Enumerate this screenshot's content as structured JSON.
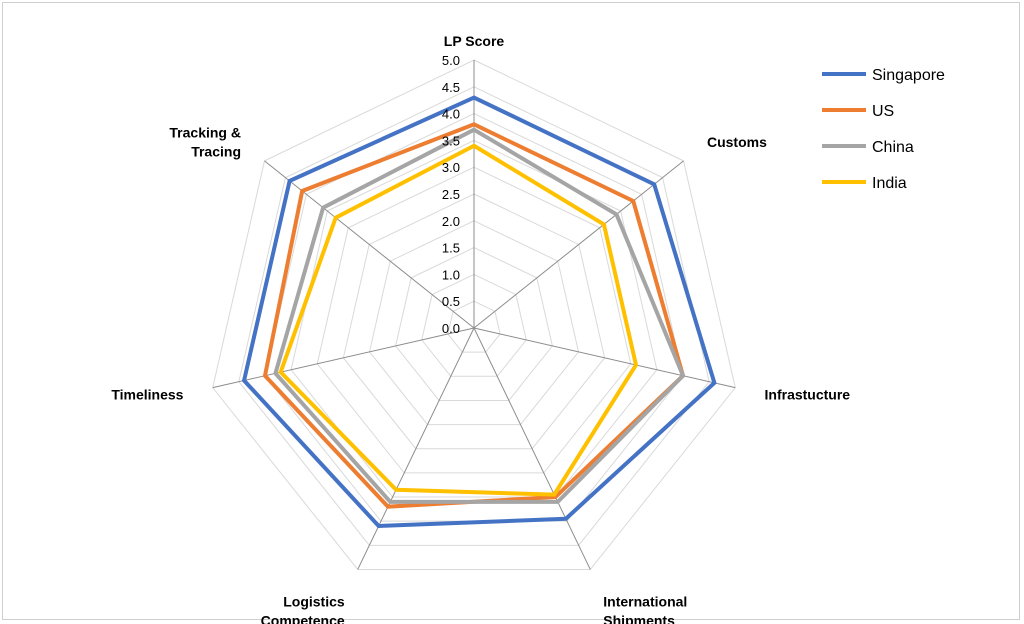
{
  "chart_data": {
    "type": "radar",
    "axes": [
      "LP Score",
      "Customs",
      "Infrastucture",
      "International Shipments",
      "Logistics Competence",
      "Timeliness",
      "Tracking & Tracing"
    ],
    "axis_label_lines": [
      [
        "LP Score"
      ],
      [
        "Customs"
      ],
      [
        "Infrastucture"
      ],
      [
        "International",
        "Shipments"
      ],
      [
        "Logistics",
        "Competence"
      ],
      [
        "Timeliness"
      ],
      [
        "Tracking &",
        "Tracing"
      ]
    ],
    "range": [
      0,
      5
    ],
    "ticks": [
      "0.0",
      "0.5",
      "1.0",
      "1.5",
      "2.0",
      "2.5",
      "3.0",
      "3.5",
      "4.0",
      "4.5",
      "5.0"
    ],
    "tick_values": [
      0,
      0.5,
      1,
      1.5,
      2,
      2.5,
      3,
      3.5,
      4,
      4.5,
      5
    ],
    "grid": true,
    "legend_position": "top-right",
    "series": [
      {
        "name": "Singapore",
        "color": "#4472C4",
        "values": [
          4.3,
          4.3,
          4.6,
          3.95,
          4.1,
          4.4,
          4.4
        ]
      },
      {
        "name": "US",
        "color": "#ED7D31",
        "values": [
          3.8,
          3.8,
          4.0,
          3.5,
          3.7,
          4.0,
          4.1
        ]
      },
      {
        "name": "China",
        "color": "#A5A5A5",
        "values": [
          3.7,
          3.4,
          4.0,
          3.6,
          3.6,
          3.8,
          3.6
        ]
      },
      {
        "name": "India",
        "color": "#FFC000",
        "values": [
          3.4,
          3.1,
          3.1,
          3.45,
          3.35,
          3.7,
          3.3
        ]
      }
    ]
  }
}
